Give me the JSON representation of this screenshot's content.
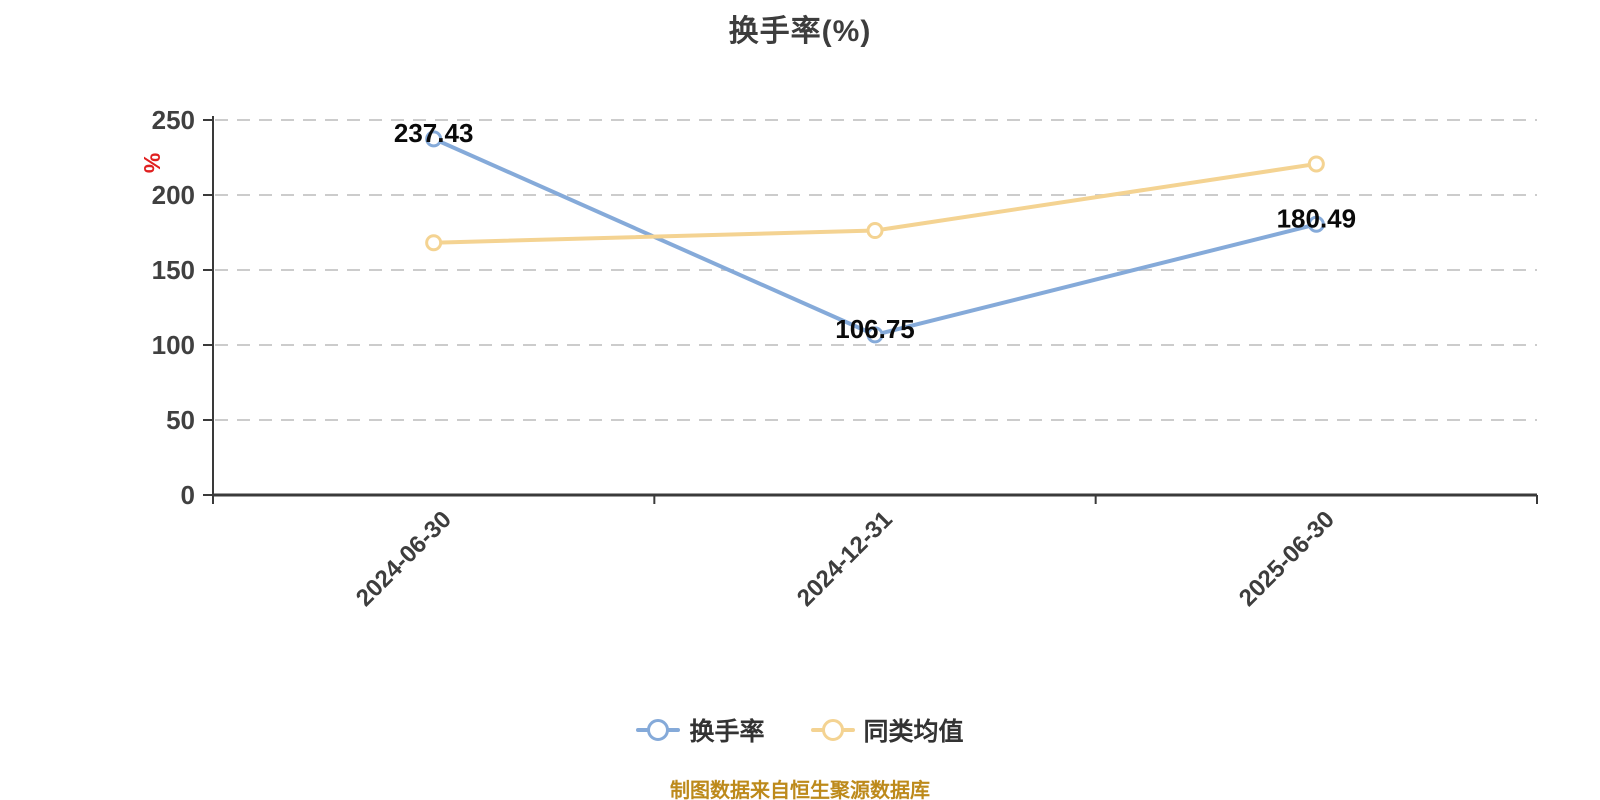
{
  "title": "换手率(%)",
  "chart_data": {
    "type": "line",
    "categories": [
      "2024-06-30",
      "2024-12-31",
      "2025-06-30"
    ],
    "series": [
      {
        "name": "换手率",
        "color": "#85aad9",
        "values": [
          237.43,
          106.75,
          180.49
        ],
        "show_labels": true,
        "labels": [
          "237.43",
          "106.75",
          "180.49"
        ]
      },
      {
        "name": "同类均值",
        "color": "#f4d392",
        "values": [
          168.2,
          176.3,
          220.7
        ],
        "show_labels": false,
        "labels": []
      }
    ],
    "title": "换手率(%)",
    "xlabel": "",
    "ylabel": "%",
    "yticks": [
      0,
      50,
      100,
      150,
      200,
      250
    ],
    "ylim": [
      0,
      250
    ],
    "grid": "horizontal-dashed",
    "legend_position": "bottom",
    "legend": [
      "换手率",
      "同类均值"
    ]
  },
  "colors": {
    "axis": "#3a3a3a",
    "gridline": "#cccccc",
    "tick_label": "#404040",
    "data_label": "#0a0a0a",
    "y_unit_label": "#e02020",
    "source_note": "#bd8a1b"
  },
  "footer": {
    "source_note": "制图数据来自恒生聚源数据库"
  }
}
